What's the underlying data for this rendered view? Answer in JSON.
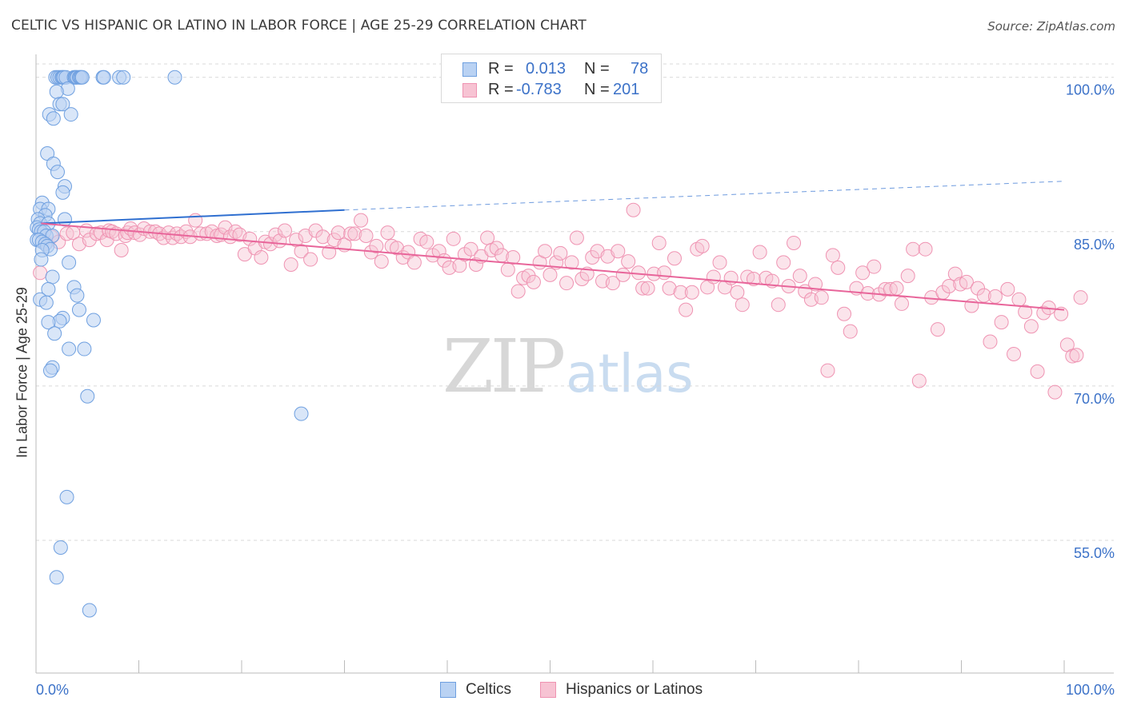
{
  "header": {
    "title": "CELTIC VS HISPANIC OR LATINO IN LABOR FORCE | AGE 25-29 CORRELATION CHART",
    "source": "Source: ZipAtlas.com"
  },
  "watermark": {
    "zip": "ZIP",
    "atlas": "atlas"
  },
  "legend": {
    "rows": [
      {
        "r_label": "R =",
        "r_value": "0.013",
        "n_label": "N =",
        "n_value": "78",
        "color": "#7aaee6"
      },
      {
        "r_label": "R =",
        "r_value": "-0.783",
        "n_label": "N =",
        "n_value": "201",
        "color": "#f2a0bb"
      }
    ]
  },
  "bottom_legend": {
    "series1": "Celtics",
    "series2": "Hispanics or Latinos"
  },
  "colors": {
    "blue_fill": "#b9d2f3",
    "blue_stroke": "#6fa0e0",
    "blue_line": "#2f6fd0",
    "pink_fill": "#f7c3d3",
    "pink_stroke": "#ef93b2",
    "pink_line": "#e8659a",
    "value_text": "#3c72c8",
    "grid": "#d9d9d9"
  },
  "chart_data": {
    "type": "scatter",
    "title": "CELTIC VS HISPANIC OR LATINO IN LABOR FORCE | AGE 25-29 CORRELATION CHART",
    "xlabel": "",
    "ylabel": "In Labor Force | Age 25-29",
    "x_tick_labels": [
      "0.0%",
      "100.0%"
    ],
    "y_tick_labels": [
      "100.0%",
      "85.0%",
      "70.0%",
      "55.0%"
    ],
    "y_ticks": [
      100,
      85,
      70,
      55
    ],
    "xlim": [
      0,
      100
    ],
    "ylim": [
      42.1,
      101.3
    ],
    "grid": true,
    "legend_position": "top-center",
    "series": [
      {
        "name": "Celtics",
        "R": 0.013,
        "N": 78,
        "trend": {
          "x_start": 0.5,
          "y_start": 85.8,
          "x_solid_end": 30,
          "y_solid_end": 87.1,
          "x_end": 100,
          "y_end": 89.9
        },
        "points": [
          [
            1.9,
            100
          ],
          [
            2.1,
            100
          ],
          [
            2.3,
            100
          ],
          [
            2.5,
            100
          ],
          [
            2.6,
            100
          ],
          [
            2.7,
            100
          ],
          [
            2.9,
            100
          ],
          [
            3.7,
            100
          ],
          [
            3.8,
            100
          ],
          [
            3.9,
            100
          ],
          [
            4.0,
            100
          ],
          [
            4.2,
            100
          ],
          [
            4.3,
            100
          ],
          [
            4.4,
            100
          ],
          [
            4.5,
            100
          ],
          [
            6.5,
            100
          ],
          [
            6.6,
            100
          ],
          [
            8.1,
            100
          ],
          [
            8.5,
            100
          ],
          [
            13.5,
            100
          ],
          [
            3.1,
            98.9
          ],
          [
            2.0,
            98.6
          ],
          [
            2.3,
            97.4
          ],
          [
            2.6,
            97.4
          ],
          [
            1.3,
            96.4
          ],
          [
            3.4,
            96.4
          ],
          [
            1.7,
            96.0
          ],
          [
            1.1,
            92.6
          ],
          [
            1.7,
            91.6
          ],
          [
            2.1,
            90.8
          ],
          [
            2.8,
            89.4
          ],
          [
            2.6,
            88.8
          ],
          [
            0.6,
            87.8
          ],
          [
            0.4,
            87.2
          ],
          [
            1.2,
            87.2
          ],
          [
            0.9,
            86.6
          ],
          [
            0.2,
            86.2
          ],
          [
            0.4,
            85.8
          ],
          [
            1.2,
            85.8
          ],
          [
            2.8,
            86.2
          ],
          [
            0.1,
            85.4
          ],
          [
            0.3,
            85.2
          ],
          [
            0.5,
            85.0
          ],
          [
            0.8,
            85.0
          ],
          [
            1.0,
            84.6
          ],
          [
            1.6,
            84.6
          ],
          [
            0.1,
            84.2
          ],
          [
            0.3,
            84.2
          ],
          [
            0.6,
            84.0
          ],
          [
            0.9,
            83.8
          ],
          [
            1.1,
            83.6
          ],
          [
            1.4,
            83.3
          ],
          [
            0.6,
            83.2
          ],
          [
            0.5,
            82.3
          ],
          [
            3.2,
            82.0
          ],
          [
            1.6,
            80.6
          ],
          [
            1.2,
            79.4
          ],
          [
            3.7,
            79.6
          ],
          [
            4.0,
            78.8
          ],
          [
            0.4,
            78.4
          ],
          [
            1.0,
            78.1
          ],
          [
            4.2,
            77.4
          ],
          [
            2.6,
            76.6
          ],
          [
            5.6,
            76.4
          ],
          [
            2.3,
            76.3
          ],
          [
            1.2,
            76.2
          ],
          [
            1.8,
            75.1
          ],
          [
            3.2,
            73.6
          ],
          [
            4.7,
            73.6
          ],
          [
            1.6,
            71.8
          ],
          [
            1.4,
            71.5
          ],
          [
            5.0,
            69.0
          ],
          [
            25.8,
            67.3
          ],
          [
            3.0,
            59.2
          ],
          [
            2.4,
            54.3
          ],
          [
            2.0,
            51.4
          ],
          [
            5.2,
            48.2
          ]
        ]
      },
      {
        "name": "Hispanics or Latinos",
        "R": -0.783,
        "N": 201,
        "trend": {
          "x_start": 0.5,
          "y_start": 85.8,
          "x_end": 100,
          "y_end": 77.4
        },
        "points": [
          [
            0.4,
            81.0
          ],
          [
            1.0,
            83.9
          ],
          [
            1.5,
            84.5
          ],
          [
            2.2,
            84.0
          ],
          [
            3.0,
            84.8
          ],
          [
            3.6,
            84.9
          ],
          [
            4.2,
            83.8
          ],
          [
            4.9,
            85.1
          ],
          [
            5.2,
            84.2
          ],
          [
            5.9,
            84.8
          ],
          [
            6.3,
            84.9
          ],
          [
            6.9,
            84.2
          ],
          [
            7.1,
            85.1
          ],
          [
            7.4,
            85.0
          ],
          [
            7.8,
            84.8
          ],
          [
            8.3,
            83.2
          ],
          [
            8.7,
            84.6
          ],
          [
            8.9,
            84.9
          ],
          [
            9.2,
            85.3
          ],
          [
            9.6,
            84.9
          ],
          [
            10.1,
            84.7
          ],
          [
            10.5,
            85.3
          ],
          [
            11.1,
            85.0
          ],
          [
            11.6,
            85.0
          ],
          [
            12.0,
            84.8
          ],
          [
            12.4,
            84.4
          ],
          [
            12.9,
            84.9
          ],
          [
            13.3,
            84.4
          ],
          [
            13.7,
            84.8
          ],
          [
            14.1,
            84.5
          ],
          [
            14.6,
            85.0
          ],
          [
            15.0,
            84.5
          ],
          [
            15.5,
            86.1
          ],
          [
            16.0,
            84.8
          ],
          [
            16.6,
            84.8
          ],
          [
            17.1,
            85.0
          ],
          [
            17.6,
            84.6
          ],
          [
            18.0,
            84.7
          ],
          [
            18.4,
            85.4
          ],
          [
            18.9,
            84.5
          ],
          [
            19.4,
            85.0
          ],
          [
            19.8,
            84.7
          ],
          [
            20.3,
            82.8
          ],
          [
            20.8,
            84.3
          ],
          [
            21.3,
            83.4
          ],
          [
            21.9,
            82.5
          ],
          [
            22.3,
            84.0
          ],
          [
            22.8,
            83.8
          ],
          [
            23.3,
            84.7
          ],
          [
            23.7,
            84.1
          ],
          [
            24.2,
            85.1
          ],
          [
            24.8,
            81.8
          ],
          [
            25.3,
            84.2
          ],
          [
            25.8,
            83.1
          ],
          [
            26.2,
            84.6
          ],
          [
            26.7,
            82.3
          ],
          [
            27.2,
            85.1
          ],
          [
            27.9,
            84.5
          ],
          [
            28.5,
            83.0
          ],
          [
            29.0,
            84.2
          ],
          [
            29.4,
            84.9
          ],
          [
            30.0,
            83.7
          ],
          [
            30.6,
            84.8
          ],
          [
            31.0,
            84.8
          ],
          [
            31.6,
            86.1
          ],
          [
            32.1,
            84.6
          ],
          [
            32.6,
            83.0
          ],
          [
            33.1,
            83.6
          ],
          [
            33.6,
            82.1
          ],
          [
            34.2,
            84.9
          ],
          [
            34.6,
            83.6
          ],
          [
            35.1,
            83.4
          ],
          [
            35.7,
            82.5
          ],
          [
            36.2,
            83.0
          ],
          [
            36.8,
            82.0
          ],
          [
            37.4,
            84.3
          ],
          [
            38.0,
            84.0
          ],
          [
            38.6,
            82.7
          ],
          [
            39.2,
            83.1
          ],
          [
            39.7,
            82.2
          ],
          [
            40.2,
            81.5
          ],
          [
            40.6,
            84.3
          ],
          [
            41.2,
            81.7
          ],
          [
            41.7,
            82.8
          ],
          [
            42.3,
            83.3
          ],
          [
            42.8,
            81.8
          ],
          [
            43.3,
            82.6
          ],
          [
            43.9,
            84.4
          ],
          [
            44.3,
            83.2
          ],
          [
            44.8,
            83.4
          ],
          [
            45.3,
            82.7
          ],
          [
            45.9,
            81.3
          ],
          [
            46.4,
            82.5
          ],
          [
            46.9,
            79.2
          ],
          [
            47.4,
            80.5
          ],
          [
            47.9,
            80.7
          ],
          [
            48.4,
            80.1
          ],
          [
            49.0,
            82.0
          ],
          [
            49.5,
            83.1
          ],
          [
            50.0,
            80.8
          ],
          [
            50.6,
            82.0
          ],
          [
            51.0,
            82.9
          ],
          [
            51.6,
            80.0
          ],
          [
            52.1,
            82.0
          ],
          [
            52.6,
            84.4
          ],
          [
            53.1,
            80.4
          ],
          [
            53.6,
            80.9
          ],
          [
            54.1,
            82.5
          ],
          [
            54.6,
            83.1
          ],
          [
            55.1,
            80.2
          ],
          [
            55.6,
            82.6
          ],
          [
            56.1,
            80.0
          ],
          [
            56.6,
            83.1
          ],
          [
            57.1,
            80.8
          ],
          [
            57.6,
            82.1
          ],
          [
            58.1,
            87.1
          ],
          [
            58.6,
            81.0
          ],
          [
            59.0,
            79.5
          ],
          [
            59.5,
            79.5
          ],
          [
            60.1,
            80.9
          ],
          [
            60.6,
            83.9
          ],
          [
            61.1,
            81.0
          ],
          [
            61.6,
            79.5
          ],
          [
            62.1,
            82.4
          ],
          [
            62.7,
            79.1
          ],
          [
            63.2,
            77.4
          ],
          [
            63.8,
            79.1
          ],
          [
            64.3,
            83.3
          ],
          [
            64.8,
            83.6
          ],
          [
            65.3,
            79.6
          ],
          [
            65.9,
            80.6
          ],
          [
            66.5,
            82.0
          ],
          [
            67.0,
            79.6
          ],
          [
            67.6,
            80.5
          ],
          [
            68.2,
            79.1
          ],
          [
            68.7,
            77.9
          ],
          [
            69.2,
            80.6
          ],
          [
            69.8,
            80.4
          ],
          [
            70.4,
            83.0
          ],
          [
            71.0,
            80.5
          ],
          [
            71.6,
            80.2
          ],
          [
            72.2,
            77.9
          ],
          [
            72.7,
            82.0
          ],
          [
            73.2,
            79.7
          ],
          [
            73.7,
            83.9
          ],
          [
            74.3,
            80.7
          ],
          [
            74.8,
            79.2
          ],
          [
            75.4,
            78.4
          ],
          [
            75.8,
            79.9
          ],
          [
            76.4,
            78.6
          ],
          [
            77.0,
            71.5
          ],
          [
            77.5,
            82.7
          ],
          [
            78.0,
            81.5
          ],
          [
            78.6,
            77.0
          ],
          [
            79.2,
            75.3
          ],
          [
            79.8,
            79.5
          ],
          [
            80.4,
            81.0
          ],
          [
            80.9,
            79.0
          ],
          [
            81.5,
            81.6
          ],
          [
            82.0,
            78.9
          ],
          [
            82.6,
            79.4
          ],
          [
            83.1,
            79.4
          ],
          [
            83.7,
            79.5
          ],
          [
            84.2,
            78.0
          ],
          [
            84.8,
            80.7
          ],
          [
            85.3,
            83.3
          ],
          [
            85.9,
            70.5
          ],
          [
            86.5,
            83.3
          ],
          [
            87.1,
            78.6
          ],
          [
            87.7,
            75.5
          ],
          [
            88.2,
            79.1
          ],
          [
            88.8,
            79.7
          ],
          [
            89.4,
            80.9
          ],
          [
            89.9,
            79.9
          ],
          [
            90.5,
            80.1
          ],
          [
            91.0,
            77.8
          ],
          [
            91.6,
            79.5
          ],
          [
            92.2,
            78.8
          ],
          [
            92.8,
            74.3
          ],
          [
            93.3,
            78.7
          ],
          [
            93.9,
            76.2
          ],
          [
            94.5,
            79.4
          ],
          [
            95.1,
            73.1
          ],
          [
            95.6,
            78.4
          ],
          [
            96.2,
            77.2
          ],
          [
            96.8,
            75.8
          ],
          [
            97.4,
            71.4
          ],
          [
            98.0,
            77.1
          ],
          [
            98.5,
            77.6
          ],
          [
            99.1,
            69.4
          ],
          [
            99.7,
            77.0
          ],
          [
            100.3,
            74.0
          ],
          [
            100.8,
            72.9
          ],
          [
            101.2,
            73.0
          ],
          [
            101.6,
            78.6
          ]
        ]
      }
    ]
  }
}
